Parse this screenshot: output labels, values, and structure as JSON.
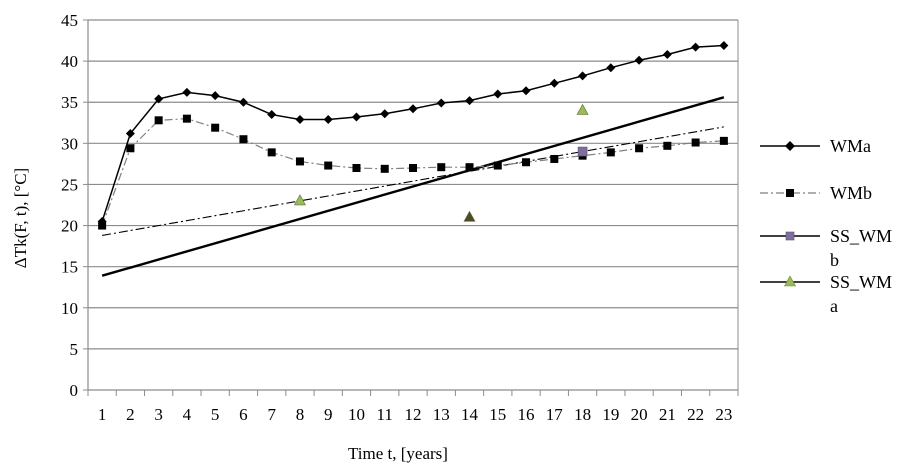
{
  "chart_data": {
    "type": "line",
    "xlabel": "Time t, [years]",
    "ylabel": "ΔTk(F, t), [°C]",
    "x": [
      1,
      2,
      3,
      4,
      5,
      6,
      7,
      8,
      9,
      10,
      11,
      12,
      13,
      14,
      15,
      16,
      17,
      18,
      19,
      20,
      21,
      22,
      23
    ],
    "xlim": [
      0.5,
      23.5
    ],
    "ylim": [
      0,
      45
    ],
    "yticks": [
      0,
      5,
      10,
      15,
      20,
      25,
      30,
      35,
      40,
      45
    ],
    "grid": "horizontal",
    "legend_position": "right",
    "series": [
      {
        "name": "WMa",
        "style": "solid",
        "marker": "diamond",
        "color": "#000000",
        "values": [
          20.5,
          31.2,
          35.4,
          36.2,
          35.8,
          35.0,
          33.5,
          32.9,
          32.9,
          33.2,
          33.6,
          34.2,
          34.9,
          35.2,
          36.0,
          36.4,
          37.3,
          38.2,
          39.2,
          40.1,
          40.8,
          41.7,
          41.9
        ]
      },
      {
        "name": "WMb",
        "style": "dashdot",
        "marker": "square",
        "color": "#7f7f7f",
        "values": [
          20.0,
          29.4,
          32.8,
          33.0,
          31.9,
          30.5,
          28.9,
          27.8,
          27.3,
          27.0,
          26.9,
          27.0,
          27.1,
          27.1,
          27.3,
          27.7,
          28.1,
          28.5,
          28.9,
          29.4,
          29.7,
          30.1,
          30.3
        ]
      },
      {
        "name": "SS_WM b",
        "marker": "square",
        "color": "#7f6f9f",
        "points": [
          [
            18,
            29.0
          ]
        ]
      },
      {
        "name": "SS_WM a",
        "marker": "triangle",
        "color": "#9bbb59",
        "points": [
          [
            8,
            23.0
          ],
          [
            14,
            21.0
          ],
          [
            18,
            34.0
          ]
        ]
      }
    ],
    "trendlines": [
      {
        "style": "solid",
        "color": "#000000",
        "from": [
          1,
          13.9
        ],
        "to": [
          23,
          35.6
        ]
      },
      {
        "style": "dashdot",
        "color": "#000000",
        "from": [
          1,
          18.8
        ],
        "to": [
          23,
          32.0
        ]
      }
    ]
  },
  "legend": [
    {
      "label_line1": "WMa",
      "label_line2": ""
    },
    {
      "label_line1": "WMb",
      "label_line2": ""
    },
    {
      "label_line1": "SS_WM",
      "label_line2": "b"
    },
    {
      "label_line1": "SS_WM",
      "label_line2": "a"
    }
  ],
  "colors": {
    "grid": "#8c8c8c",
    "axis": "#8c8c8c",
    "olive_marker": "#4f4a2a"
  }
}
